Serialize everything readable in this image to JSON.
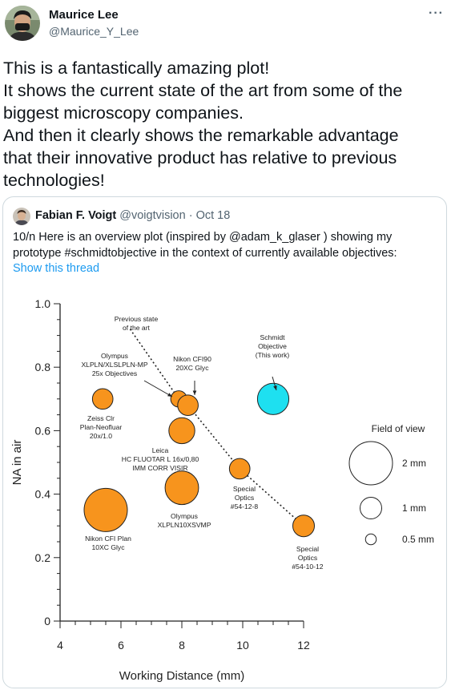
{
  "tweet": {
    "author_name": "Maurice Lee",
    "author_handle": "@Maurice_Y_Lee",
    "more_icon": "···",
    "text_lines": [
      "This is a fantastically amazing plot!",
      "It shows the current state of the art from some of the",
      "biggest microscopy companies.",
      "And then it clearly shows the remarkable advantage",
      "that their innovative product has relative to previous",
      "technologies!"
    ]
  },
  "quoted_tweet": {
    "author_name": "Fabian F. Voigt",
    "author_handle": "@voigtvision",
    "separator": "·",
    "date": "Oct 18",
    "text_lines": [
      "10/n Here is an overview plot (inspired by @adam_k_glaser ) showing my",
      "prototype #schmidtobjective in the context of currently available objectives:"
    ],
    "show_thread": "Show this thread"
  },
  "chart_data": {
    "type": "scatter",
    "xlabel": "Working Distance (mm)",
    "ylabel": "NA in air",
    "xlim": [
      4,
      12.5
    ],
    "ylim": [
      0,
      1.0
    ],
    "xticks": [
      "4",
      "6",
      "8",
      "10",
      "12"
    ],
    "yticks": [
      "0",
      "0.2",
      "0.4",
      "0.6",
      "0.8",
      "1.0"
    ],
    "grid": false,
    "colors": {
      "commercial": "#f7941d",
      "schmidt": "#1ee0f0",
      "stroke": "#222222"
    },
    "points": [
      {
        "x": 5.5,
        "y": 0.35,
        "fov_mm": 2.0,
        "group": "commercial"
      },
      {
        "x": 5.4,
        "y": 0.7,
        "fov_mm": 0.95,
        "group": "commercial"
      },
      {
        "x": 8.0,
        "y": 0.6,
        "fov_mm": 1.2,
        "group": "commercial"
      },
      {
        "x": 8.0,
        "y": 0.42,
        "fov_mm": 1.55,
        "group": "commercial"
      },
      {
        "x": 7.9,
        "y": 0.7,
        "fov_mm": 0.75,
        "group": "commercial"
      },
      {
        "x": 8.2,
        "y": 0.68,
        "fov_mm": 0.95,
        "group": "commercial"
      },
      {
        "x": 9.9,
        "y": 0.48,
        "fov_mm": 0.95,
        "group": "commercial"
      },
      {
        "x": 12.0,
        "y": 0.3,
        "fov_mm": 1.0,
        "group": "commercial"
      },
      {
        "x": 11.0,
        "y": 0.7,
        "fov_mm": 1.45,
        "group": "schmidt"
      }
    ],
    "frontier_line": [
      [
        6.3,
        0.92
      ],
      [
        7.9,
        0.7
      ],
      [
        8.2,
        0.68
      ],
      [
        9.9,
        0.48
      ],
      [
        12.0,
        0.3
      ]
    ],
    "labels": {
      "previous_state": [
        "Previous state",
        "of the art"
      ],
      "olympus_25x": [
        "Olympus",
        "XLPLN/XLSLPLN-MP",
        "25x Objectives"
      ],
      "nikon_cfi90": [
        "Nikon CFI90",
        "20XC Glyc"
      ],
      "schmidt": [
        "Schmidt",
        "Objective",
        "(This work)"
      ],
      "zeiss": [
        "Zeiss Clr",
        "Plan-Neofluar",
        "20x/1.0"
      ],
      "leica": [
        "Leica",
        "HC FLUOTAR L 16x/0,80",
        "IMM CORR VISIR"
      ],
      "special_54_12_8": [
        "Special",
        "Optics",
        "#54-12-8"
      ],
      "olympus_xlpln10": [
        "Olympus",
        "XLPLN10XSVMP"
      ],
      "nikon_plan": [
        "Nikon CFI Plan",
        "10XC Glyc"
      ],
      "special_54_10_12": [
        "Special",
        "Optics",
        "#54-10-12"
      ]
    },
    "legend": {
      "title": "Field of view",
      "entries": [
        {
          "label": "2 mm",
          "fov_mm": 2.0
        },
        {
          "label": "1 mm",
          "fov_mm": 1.0
        },
        {
          "label": "0.5 mm",
          "fov_mm": 0.5
        }
      ]
    }
  }
}
